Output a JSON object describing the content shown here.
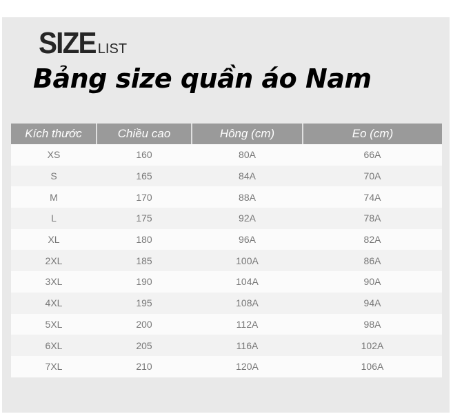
{
  "brand": {
    "big": "SIZE",
    "small": "LIST"
  },
  "title": "Bảng size quần áo Nam",
  "table": {
    "headers": [
      "Kích thước",
      "Chiều cao",
      "Hông (cm)",
      "Eo (cm)"
    ],
    "rows": [
      [
        "XS",
        "160",
        "80A",
        "66A"
      ],
      [
        "S",
        "165",
        "84A",
        "70A"
      ],
      [
        "M",
        "170",
        "88A",
        "74A"
      ],
      [
        "L",
        "175",
        "92A",
        "78A"
      ],
      [
        "XL",
        "180",
        "96A",
        "82A"
      ],
      [
        "2XL",
        "185",
        "100A",
        "86A"
      ],
      [
        "3XL",
        "190",
        "104A",
        "90A"
      ],
      [
        "4XL",
        "195",
        "108A",
        "94A"
      ],
      [
        "5XL",
        "200",
        "112A",
        "98A"
      ],
      [
        "6XL",
        "205",
        "116A",
        "102A"
      ],
      [
        "7XL",
        "210",
        "120A",
        "106A"
      ]
    ]
  },
  "colors": {
    "header_bg": "#9a9a9a",
    "panel_bg": "#e9e9e9"
  }
}
